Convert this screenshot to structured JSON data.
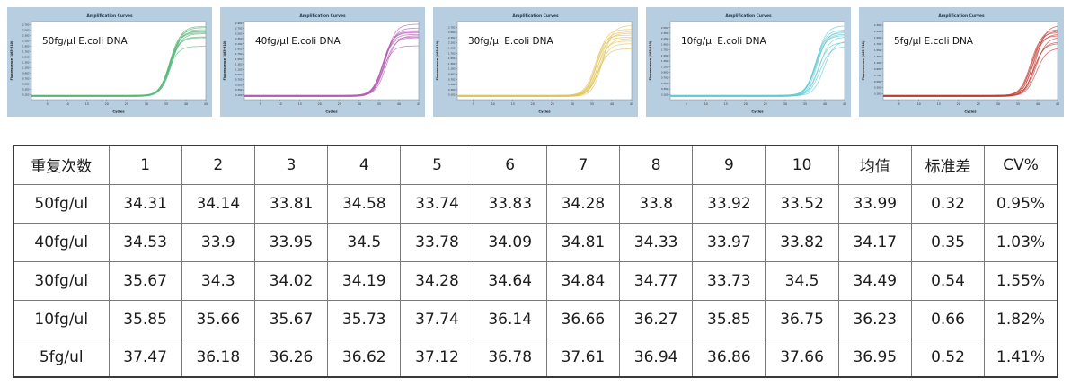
{
  "chart_data": {
    "type": "line",
    "title": "Amplification Curves",
    "xlabel": "Cycles",
    "ylabel": "Fluorescence (465-510)",
    "xlim": [
      1,
      45
    ],
    "x_ticks": [
      5,
      10,
      15,
      20,
      25,
      30,
      35,
      40,
      45
    ],
    "panel_bg": "#b7cde0",
    "title_color": "#1f3a52",
    "axis_color": "#44505a",
    "panels": [
      {
        "annotation": "50fg/μl E.coli DNA",
        "color": "#55b877",
        "ylim": [
          0,
          2.9
        ],
        "ytick_start": 0.182,
        "ytick_step": 0.2,
        "ct_values": [
          34.31,
          34.14,
          33.81,
          34.58,
          33.74,
          33.83,
          34.28,
          33.8,
          33.92,
          33.52
        ],
        "plateaus": [
          2.72,
          2.55,
          2.48,
          2.68,
          2.33,
          2.6,
          2.45,
          2.3,
          2.52,
          1.98
        ]
      },
      {
        "annotation": "40fg/μl E.coli DNA",
        "color": "#b35cb5",
        "ylim": [
          0,
          3.05
        ],
        "ytick_start": 0.182,
        "ytick_step": 0.2,
        "ct_values": [
          34.53,
          33.9,
          33.95,
          34.5,
          33.78,
          34.09,
          34.81,
          34.33,
          33.97,
          33.82
        ],
        "plateaus": [
          2.95,
          2.62,
          2.55,
          2.8,
          2.45,
          2.7,
          2.5,
          2.42,
          2.65,
          2.1
        ]
      },
      {
        "annotation": "30fg/μl E.coli DNA",
        "color": "#e0c255",
        "ylim": [
          0,
          3.0
        ],
        "ytick_start": 0.182,
        "ytick_step": 0.2,
        "ct_values": [
          35.67,
          34.3,
          34.02,
          34.19,
          34.28,
          34.64,
          34.84,
          34.77,
          33.73,
          34.5
        ],
        "plateaus": [
          2.85,
          2.6,
          2.4,
          2.7,
          2.25,
          2.55,
          2.35,
          2.15,
          2.48,
          1.95
        ]
      },
      {
        "annotation": "10fg/μl E.coli DNA",
        "color": "#5ec9d4",
        "ylim": [
          0,
          2.8
        ],
        "ytick_start": 0.182,
        "ytick_step": 0.2,
        "ct_values": [
          35.85,
          35.66,
          35.67,
          35.73,
          37.74,
          36.14,
          36.66,
          36.27,
          35.85,
          36.75
        ],
        "plateaus": [
          2.65,
          2.4,
          2.3,
          2.5,
          2.1,
          2.45,
          2.25,
          2.05,
          2.35,
          1.9
        ]
      },
      {
        "annotation": "5fg/μl E.coli DNA",
        "color": "#c23b34",
        "ylim": [
          0,
          2.5
        ],
        "ytick_start": 0.182,
        "ytick_step": 0.2,
        "ct_values": [
          37.47,
          36.18,
          36.26,
          36.62,
          37.12,
          36.78,
          37.61,
          36.94,
          36.86,
          37.66
        ],
        "plateaus": [
          2.38,
          2.15,
          2.05,
          2.25,
          1.85,
          2.2,
          2.0,
          1.8,
          2.1,
          1.65
        ]
      }
    ]
  },
  "table": {
    "headers": [
      "重复次数",
      "1",
      "2",
      "3",
      "4",
      "5",
      "6",
      "7",
      "8",
      "9",
      "10",
      "均值",
      "标准差",
      "CV%"
    ],
    "rows": [
      [
        "50fg/ul",
        "34.31",
        "34.14",
        "33.81",
        "34.58",
        "33.74",
        "33.83",
        "34.28",
        "33.8",
        "33.92",
        "33.52",
        "33.99",
        "0.32",
        "0.95%"
      ],
      [
        "40fg/ul",
        "34.53",
        "33.9",
        "33.95",
        "34.5",
        "33.78",
        "34.09",
        "34.81",
        "34.33",
        "33.97",
        "33.82",
        "34.17",
        "0.35",
        "1.03%"
      ],
      [
        "30fg/ul",
        "35.67",
        "34.3",
        "34.02",
        "34.19",
        "34.28",
        "34.64",
        "34.84",
        "34.77",
        "33.73",
        "34.5",
        "34.49",
        "0.54",
        "1.55%"
      ],
      [
        "10fg/ul",
        "35.85",
        "35.66",
        "35.67",
        "35.73",
        "37.74",
        "36.14",
        "36.66",
        "36.27",
        "35.85",
        "36.75",
        "36.23",
        "0.66",
        "1.82%"
      ],
      [
        "5fg/ul",
        "37.47",
        "36.18",
        "36.26",
        "36.62",
        "37.12",
        "36.78",
        "37.61",
        "36.94",
        "36.86",
        "37.66",
        "36.95",
        "0.52",
        "1.41%"
      ]
    ]
  }
}
